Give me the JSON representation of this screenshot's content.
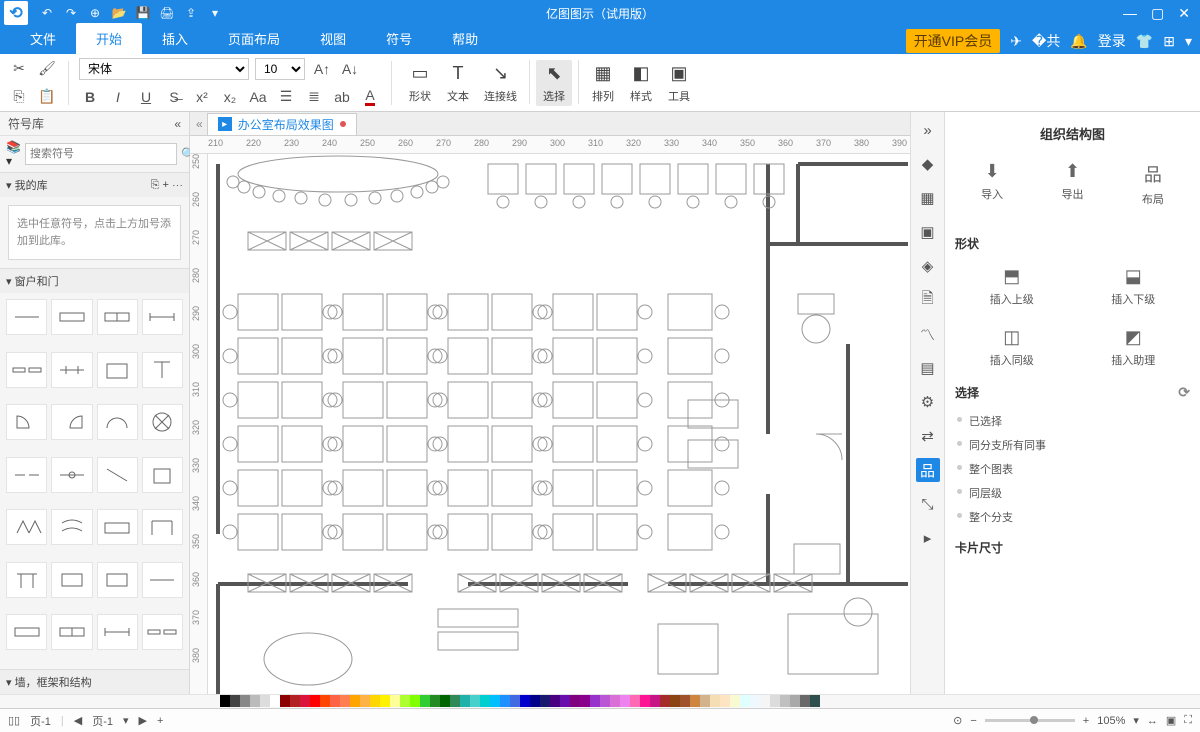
{
  "app_title": "亿图图示（试用版）",
  "qat_icons": [
    "undo-icon",
    "redo-icon",
    "new-icon",
    "open-icon",
    "save-icon",
    "print-icon",
    "export-icon",
    "more-icon"
  ],
  "menu_tabs": [
    "文件",
    "开始",
    "插入",
    "页面布局",
    "视图",
    "符号",
    "帮助"
  ],
  "active_menu_tab": 1,
  "vip_label": "开通VIP会员",
  "login_label": "登录",
  "ribbon": {
    "font_family": "宋体",
    "font_size": "10",
    "big_buttons": [
      {
        "id": "shape",
        "label": "形状",
        "glyph": "▭"
      },
      {
        "id": "text",
        "label": "文本",
        "glyph": "T"
      },
      {
        "id": "connector",
        "label": "连接线",
        "glyph": "↘"
      },
      {
        "id": "select",
        "label": "选择",
        "glyph": "⬉",
        "selected": true
      },
      {
        "id": "arrange",
        "label": "排列",
        "glyph": "▦"
      },
      {
        "id": "style",
        "label": "样式",
        "glyph": "◧"
      },
      {
        "id": "tools",
        "label": "工具",
        "glyph": "▣"
      }
    ]
  },
  "left": {
    "panel_title": "符号库",
    "search_placeholder": "搜索符号",
    "my_lib_label": "我的库",
    "my_lib_msg": "选中任意符号，点击上方加号添加到此库。",
    "windows_doors_label": "窗户和门",
    "walls_label": "墙，框架和结构"
  },
  "doc_tab": {
    "name": "办公室布局效果图",
    "modified": true
  },
  "ruler_h_start": 210,
  "ruler_h_step": 10,
  "ruler_h_count": 70,
  "ruler_v_start": 250,
  "ruler_v_step": 10,
  "ruler_v_count": 40,
  "right": {
    "title": "组织结构图",
    "top_actions": [
      {
        "l": "导入",
        "g": "⬇"
      },
      {
        "l": "导出",
        "g": "⬆"
      },
      {
        "l": "布局",
        "g": "品"
      }
    ],
    "shape_label": "形状",
    "shape_actions": [
      {
        "l": "插入上级",
        "g": "⬒"
      },
      {
        "l": "插入下级",
        "g": "⬓"
      },
      {
        "l": "插入同级",
        "g": "◫"
      },
      {
        "l": "插入助理",
        "g": "◩"
      }
    ],
    "select_label": "选择",
    "select_opts": [
      "已选择",
      "同分支所有同事",
      "整个图表",
      "同层级",
      "整个分支"
    ],
    "card_size_label": "卡片尺寸"
  },
  "right_toolstrip": [
    {
      "g": "»",
      "n": "collapse"
    },
    {
      "g": "◆",
      "n": "theme"
    },
    {
      "g": "▦",
      "n": "grid"
    },
    {
      "g": "▣",
      "n": "image"
    },
    {
      "g": "◈",
      "n": "layers"
    },
    {
      "g": "🗎",
      "n": "page"
    },
    {
      "g": "〽",
      "n": "chart"
    },
    {
      "g": "▤",
      "n": "table"
    },
    {
      "g": "⚙",
      "n": "mech"
    },
    {
      "g": "⇄",
      "n": "swap"
    },
    {
      "g": "品",
      "n": "org",
      "active": true
    },
    {
      "g": "⤡",
      "n": "expand"
    },
    {
      "g": "▸",
      "n": "play"
    }
  ],
  "color_swatches": [
    "#000",
    "#444",
    "#888",
    "#bbb",
    "#ddd",
    "#fff",
    "#8b0000",
    "#b22222",
    "#dc143c",
    "#ff0000",
    "#ff4500",
    "#ff6347",
    "#ff7f50",
    "#ffa500",
    "#ffb347",
    "#ffd700",
    "#fff200",
    "#ffff99",
    "#adff2f",
    "#7fff00",
    "#32cd32",
    "#228b22",
    "#006400",
    "#2e8b57",
    "#20b2aa",
    "#48d1cc",
    "#00ced1",
    "#00bfff",
    "#1e90ff",
    "#4169e1",
    "#0000cd",
    "#00008b",
    "#191970",
    "#4b0082",
    "#6a0dad",
    "#800080",
    "#8b008b",
    "#9932cc",
    "#ba55d3",
    "#da70d6",
    "#ee82ee",
    "#ff69b4",
    "#ff1493",
    "#c71585",
    "#a52a2a",
    "#8b4513",
    "#a0522d",
    "#cd853f",
    "#d2b48c",
    "#f5deb3",
    "#ffe4c4",
    "#fafad2",
    "#e0ffff",
    "#f0f8ff",
    "#f5f5f5",
    "#dcdcdc",
    "#c0c0c0",
    "#a9a9a9",
    "#696969",
    "#2f4f4f"
  ],
  "status": {
    "page_label": "页-1",
    "page_nav": "页-1",
    "zoom": "105%"
  }
}
